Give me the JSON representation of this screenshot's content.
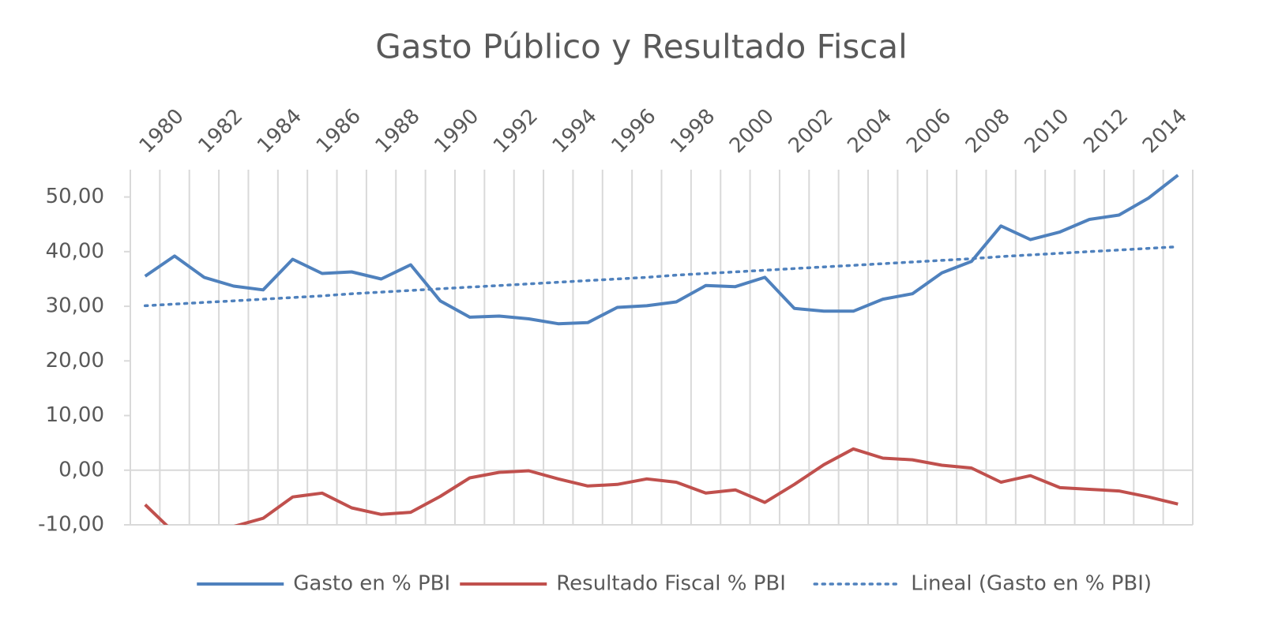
{
  "chart_data": {
    "type": "line",
    "title": "Gasto Público y Resultado Fiscal",
    "categories": [
      "1980",
      null,
      "1982",
      null,
      "1984",
      null,
      "1986",
      null,
      "1988",
      null,
      "1990",
      null,
      "1992",
      null,
      "1994",
      null,
      "1996",
      null,
      "1998",
      null,
      "2000",
      null,
      "2002",
      null,
      "2004",
      null,
      "2006",
      null,
      "2008",
      null,
      "2010",
      null,
      "2012",
      null,
      "2014",
      null
    ],
    "series": [
      {
        "name": "Gasto en % PBI",
        "color": "#4f81bd",
        "style": "solid",
        "values": [
          35.5,
          39.2,
          35.3,
          33.7,
          33.0,
          38.6,
          36.0,
          36.3,
          35.0,
          37.6,
          31.0,
          28.0,
          28.2,
          27.7,
          26.8,
          27.0,
          29.8,
          30.1,
          30.8,
          33.8,
          33.6,
          35.3,
          29.6,
          29.1,
          29.1,
          31.3,
          32.3,
          36.1,
          38.2,
          44.7,
          42.2,
          43.6,
          45.9,
          46.7,
          49.8,
          54.0
        ]
      },
      {
        "name": "Resultado Fiscal % PBI",
        "color": "#c0504d",
        "style": "solid",
        "values": [
          -6.3,
          -11.5,
          -12.0,
          -10.3,
          -8.8,
          -4.9,
          -4.2,
          -6.9,
          -8.1,
          -7.7,
          -4.8,
          -1.4,
          -0.4,
          -0.1,
          -1.6,
          -2.9,
          -2.6,
          -1.6,
          -2.2,
          -4.2,
          -3.6,
          -5.9,
          -2.6,
          1.0,
          3.9,
          2.2,
          1.9,
          0.9,
          0.4,
          -2.2,
          -1.0,
          -3.2,
          -3.5,
          -3.8,
          -4.9,
          -6.2
        ]
      },
      {
        "name": "Lineal (Gasto en % PBI)",
        "color": "#4f81bd",
        "style": "dotted",
        "values": [
          30.1,
          30.4,
          30.7,
          31.0,
          31.3,
          31.6,
          31.9,
          32.3,
          32.6,
          32.9,
          33.2,
          33.5,
          33.8,
          34.1,
          34.4,
          34.7,
          35.0,
          35.3,
          35.7,
          36.0,
          36.3,
          36.6,
          36.9,
          37.2,
          37.5,
          37.8,
          38.1,
          38.4,
          38.7,
          39.1,
          39.4,
          39.7,
          40.0,
          40.3,
          40.6,
          40.9
        ]
      }
    ],
    "ylim": [
      -10,
      55
    ],
    "yticks": [
      {
        "value": -10,
        "label": "-10,00"
      },
      {
        "value": 0,
        "label": "0,00"
      },
      {
        "value": 10,
        "label": "10,00"
      },
      {
        "value": 20,
        "label": "20,00"
      },
      {
        "value": 30,
        "label": "30,00"
      },
      {
        "value": 40,
        "label": "40,00"
      },
      {
        "value": 50,
        "label": "50,00"
      }
    ],
    "legend": "bottom"
  }
}
